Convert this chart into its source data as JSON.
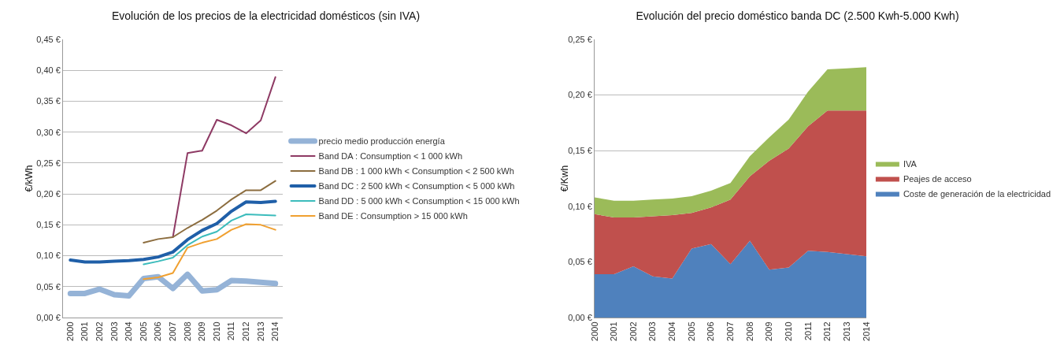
{
  "chart_data": [
    {
      "type": "line",
      "title": "Evolución de los precios de la electricidad domésticos (sin IVA)",
      "ylabel": "€/kWh",
      "categories": [
        "2000",
        "2001",
        "2002",
        "2003",
        "2004",
        "2005",
        "2006",
        "2007",
        "2008",
        "2009",
        "2010",
        "2011",
        "2012",
        "2013",
        "2014"
      ],
      "series": [
        {
          "name": "precio medio producción energía",
          "color": "#95b3d7",
          "values": [
            0.039,
            0.039,
            0.046,
            0.037,
            0.035,
            0.063,
            0.066,
            0.047,
            0.07,
            0.043,
            0.045,
            0.06,
            0.059,
            0.057,
            0.055
          ]
        },
        {
          "name": "Band DA : Consumption < 1 000 kWh",
          "color": "#8e3a64",
          "values": [
            null,
            null,
            null,
            null,
            null,
            null,
            null,
            0.13,
            0.266,
            0.27,
            0.32,
            0.311,
            0.298,
            0.319,
            0.389
          ]
        },
        {
          "name": "Band DB : 1 000 kWh < Consumption < 2 500 kWh",
          "color": "#8c6d3f",
          "values": [
            null,
            null,
            null,
            null,
            null,
            0.121,
            0.127,
            0.13,
            0.145,
            0.158,
            0.173,
            0.191,
            0.206,
            0.206,
            0.221
          ]
        },
        {
          "name": "Band DC : 2 500 kWh < Consumption < 5 000 kWh",
          "color": "#1f5fa8",
          "values": [
            0.093,
            0.09,
            0.09,
            0.091,
            0.092,
            0.094,
            0.098,
            0.106,
            0.126,
            0.141,
            0.152,
            0.172,
            0.187,
            0.186,
            0.188
          ]
        },
        {
          "name": "Band DD : 5 000 kWh < Consumption < 15 000 kWh",
          "color": "#3cbcbc",
          "values": [
            null,
            null,
            null,
            null,
            null,
            0.086,
            0.091,
            0.097,
            0.117,
            0.131,
            0.139,
            0.157,
            0.167,
            0.166,
            0.165
          ]
        },
        {
          "name": "Band DE : Consumption > 15 000 kWh",
          "color": "#f0a030",
          "values": [
            null,
            null,
            null,
            null,
            null,
            0.062,
            0.065,
            0.072,
            0.113,
            0.121,
            0.127,
            0.142,
            0.151,
            0.15,
            0.142
          ]
        }
      ],
      "ylim": [
        0,
        0.45
      ],
      "yticks": [
        {
          "value": 0,
          "label": "0,00 €"
        },
        {
          "value": 0.05,
          "label": "0,05 €"
        },
        {
          "value": 0.1,
          "label": "0,10 €"
        },
        {
          "value": 0.15,
          "label": "0,15 €"
        },
        {
          "value": 0.2,
          "label": "0,20 €"
        },
        {
          "value": 0.25,
          "label": "0,25 €"
        },
        {
          "value": 0.3,
          "label": "0,30 €"
        },
        {
          "value": 0.35,
          "label": "0,35 €"
        },
        {
          "value": 0.4,
          "label": "0,40 €"
        },
        {
          "value": 0.45,
          "label": "0,45 €"
        }
      ],
      "grid": "y",
      "legend": "right"
    },
    {
      "type": "area",
      "stacked": true,
      "title": "Evolución del precio doméstico banda DC (2.500 Kwh-5.000 Kwh)",
      "ylabel": "€/Kwh",
      "categories": [
        "2000",
        "2001",
        "2002",
        "2003",
        "2004",
        "2005",
        "2006",
        "2007",
        "2008",
        "2009",
        "2010",
        "2011",
        "2012",
        "2013",
        "2014"
      ],
      "series": [
        {
          "name": "Coste de generación de la electricidad",
          "color": "#4f81bd",
          "values": [
            0.039,
            0.039,
            0.046,
            0.037,
            0.035,
            0.062,
            0.066,
            0.048,
            0.069,
            0.043,
            0.045,
            0.06,
            0.059,
            0.057,
            0.055
          ]
        },
        {
          "name": "Peajes de acceso",
          "color": "#c0504d",
          "values": [
            0.054,
            0.051,
            0.044,
            0.054,
            0.057,
            0.032,
            0.033,
            0.058,
            0.058,
            0.098,
            0.107,
            0.112,
            0.127,
            0.129,
            0.131
          ]
        },
        {
          "name": "IVA",
          "color": "#9bbb59",
          "values": [
            0.015,
            0.015,
            0.015,
            0.015,
            0.015,
            0.015,
            0.015,
            0.015,
            0.018,
            0.021,
            0.026,
            0.031,
            0.037,
            0.038,
            0.039
          ]
        }
      ],
      "ylim": [
        0,
        0.25
      ],
      "yticks": [
        {
          "value": 0,
          "label": "0,00 €"
        },
        {
          "value": 0.05,
          "label": "0,05 €"
        },
        {
          "value": 0.1,
          "label": "0,10 €"
        },
        {
          "value": 0.15,
          "label": "0,15 €"
        },
        {
          "value": 0.2,
          "label": "0,20 €"
        },
        {
          "value": 0.25,
          "label": "0,25 €"
        }
      ],
      "grid": "y",
      "legend": "right"
    }
  ]
}
